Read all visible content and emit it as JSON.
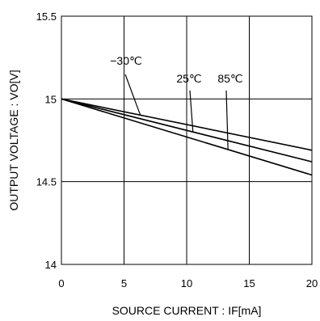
{
  "chart_data": {
    "type": "line",
    "title": "",
    "xlabel": "SOURCE CURRENT : IF[mA]",
    "ylabel": "OUTPUT VOLTAGE : VO[V]",
    "xlim": [
      0,
      20
    ],
    "ylim": [
      14,
      15.5
    ],
    "xticks": [
      0,
      5,
      10,
      15,
      20
    ],
    "yticks": [
      14,
      14.5,
      15,
      15.5
    ],
    "xtick_labels": [
      "0",
      "5",
      "10",
      "15",
      "20"
    ],
    "ytick_labels": [
      "14",
      "14.5",
      "15",
      "15.5"
    ],
    "grid": true,
    "legend": "none",
    "series": [
      {
        "name": "−30℃",
        "x": [
          0,
          20
        ],
        "y": [
          15.0,
          14.69
        ]
      },
      {
        "name": "25℃",
        "x": [
          0,
          20
        ],
        "y": [
          15.0,
          14.62
        ]
      },
      {
        "name": "85℃",
        "x": [
          0,
          20
        ],
        "y": [
          15.0,
          14.54
        ]
      }
    ]
  }
}
